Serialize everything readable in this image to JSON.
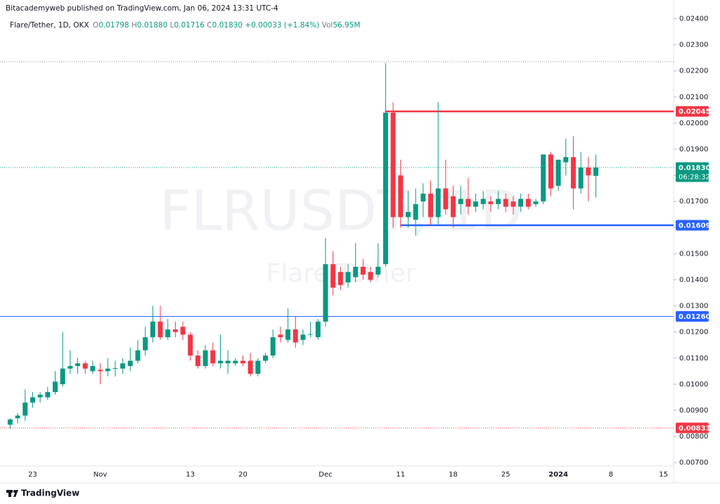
{
  "header": {
    "publisher": "Bitacademyweb published on TradingView.com, Jan 06, 2024 13:31 UTC-4",
    "symbol": "Flare/Tether, 1D, OKX",
    "ohlc": [
      {
        "key": "O",
        "value": "0.01798"
      },
      {
        "key": "H",
        "value": "0.01880"
      },
      {
        "key": "L",
        "value": "0.01716"
      },
      {
        "key": "C",
        "value": "0.01830"
      }
    ],
    "change": "+0.00033 (+1.84%)",
    "vol_key": "Vol",
    "volume": "56.95M"
  },
  "watermark": {
    "ticker": "FLRUSDT, 1D",
    "name": "Flare/Tether"
  },
  "brand": "TradingView",
  "chart_data": {
    "type": "candlestick",
    "categories": [
      null,
      null,
      null,
      "23",
      null,
      null,
      null,
      null,
      null,
      null,
      null,
      null,
      "Nov",
      null,
      null,
      null,
      null,
      null,
      null,
      null,
      null,
      null,
      null,
      null,
      "13",
      null,
      null,
      null,
      null,
      null,
      null,
      "20",
      null,
      null,
      null,
      null,
      null,
      null,
      null,
      null,
      null,
      null,
      "Dec",
      null,
      null,
      null,
      null,
      null,
      null,
      null,
      null,
      null,
      "11",
      null,
      null,
      null,
      null,
      null,
      null,
      "18",
      null,
      null,
      null,
      null,
      null,
      null,
      "25",
      null,
      null,
      null,
      null,
      null,
      null,
      "2024",
      null,
      null,
      null,
      null,
      null,
      null,
      "8",
      null,
      null,
      null,
      null,
      null,
      null,
      "15",
      null
    ],
    "open": [
      0.00845,
      0.0087,
      0.0088,
      0.0093,
      0.0095,
      0.0095,
      0.0097,
      0.01,
      0.0106,
      0.0107,
      0.0108,
      0.0105,
      0.01055,
      0.0105,
      0.0106,
      0.0106,
      0.0107,
      0.0109,
      0.0113,
      0.0118,
      0.0124,
      0.0118,
      0.0121,
      0.0122,
      0.0119,
      0.0111,
      0.0107,
      0.0113,
      0.0108,
      0.0108,
      0.0108,
      0.0109,
      0.0109,
      0.0104,
      0.0109,
      0.0111,
      0.0119,
      0.0117,
      0.0121,
      0.0117,
      0.0119,
      0.0118,
      0.0124,
      0.0146,
      0.0143,
      0.0139,
      0.0141,
      0.0145,
      0.0143,
      0.0142,
      0.0146,
      0.0204,
      0.018,
      0.0164,
      0.0163,
      0.017,
      0.0173,
      0.0164,
      0.0175,
      0.0172,
      0.0169,
      0.0171,
      0.0168,
      0.0169,
      0.017,
      0.0169,
      0.0171,
      0.017,
      0.0168,
      0.0171,
      0.0169,
      0.017,
      0.0188,
      0.0176,
      0.0185,
      0.0187,
      0.0175,
      0.0183,
      0.01798,
      null,
      null,
      null,
      null,
      null,
      null,
      null,
      null,
      null,
      null
    ],
    "high": [
      0.0087,
      0.0089,
      0.0098,
      0.0097,
      0.0097,
      0.0099,
      0.0105,
      0.012,
      0.0113,
      0.011,
      0.0109,
      0.0109,
      0.0108,
      0.011,
      0.0109,
      0.011,
      0.0114,
      0.0117,
      0.0122,
      0.013,
      0.013,
      0.0125,
      0.0124,
      0.0124,
      0.012,
      0.0113,
      0.0115,
      0.0116,
      0.0119,
      0.0113,
      0.011,
      0.0111,
      0.0112,
      0.011,
      0.0112,
      0.0121,
      0.0122,
      0.0129,
      0.0126,
      0.0121,
      0.0124,
      0.0125,
      0.0156,
      0.0151,
      0.0145,
      0.0146,
      0.0154,
      0.0148,
      0.0145,
      0.0154,
      0.0223,
      0.0208,
      0.0186,
      0.0174,
      0.0175,
      0.0177,
      0.0178,
      0.0208,
      0.0186,
      0.0176,
      0.0176,
      0.0179,
      0.0173,
      0.0174,
      0.0172,
      0.0174,
      0.0173,
      0.0172,
      0.0173,
      0.0173,
      0.0171,
      0.0188,
      0.0189,
      0.0186,
      0.0194,
      0.0195,
      0.0189,
      0.0187,
      0.0188,
      null,
      null,
      null,
      null,
      null,
      null,
      null,
      null,
      null,
      null
    ],
    "low": [
      0.0083,
      0.0085,
      0.0086,
      0.0091,
      0.0093,
      0.0094,
      0.0096,
      0.0099,
      0.0104,
      0.0104,
      0.0104,
      0.0104,
      0.01,
      0.0103,
      0.0103,
      0.0104,
      0.0105,
      0.0108,
      0.0111,
      0.0116,
      0.0117,
      0.0117,
      0.0118,
      0.0117,
      0.0109,
      0.0106,
      0.0106,
      0.0107,
      0.0106,
      0.0104,
      0.0107,
      0.0107,
      0.0103,
      0.0103,
      0.0108,
      0.011,
      0.0116,
      0.0116,
      0.0114,
      0.0115,
      0.0118,
      0.0117,
      0.0122,
      0.0134,
      0.0136,
      0.0137,
      0.0139,
      0.014,
      0.0139,
      0.0141,
      0.0145,
      0.016,
      0.016,
      0.016,
      0.0157,
      0.0164,
      0.0161,
      0.0161,
      0.0165,
      0.016,
      0.0165,
      0.0165,
      0.0166,
      0.0167,
      0.0166,
      0.0167,
      0.0166,
      0.0165,
      0.0166,
      0.0167,
      0.0168,
      0.0169,
      0.0172,
      0.0174,
      0.018,
      0.0167,
      0.0173,
      0.017,
      0.01716,
      null,
      null,
      null,
      null,
      null,
      null,
      null,
      null,
      null,
      null
    ],
    "close": [
      0.00865,
      0.0088,
      0.0093,
      0.0095,
      0.0096,
      0.0097,
      0.0101,
      0.0106,
      0.0107,
      0.0108,
      0.0106,
      0.0107,
      0.0105,
      0.0106,
      0.01062,
      0.0108,
      0.0109,
      0.0113,
      0.0118,
      0.0124,
      0.0118,
      0.0121,
      0.012,
      0.0119,
      0.0111,
      0.0107,
      0.0113,
      0.0108,
      0.0109,
      0.0109,
      0.0109,
      0.0108,
      0.0104,
      0.0109,
      0.0111,
      0.0118,
      0.0118,
      0.0121,
      0.0116,
      0.0119,
      0.01192,
      0.0124,
      0.0146,
      0.0137,
      0.0138,
      0.0143,
      0.0145,
      0.0142,
      0.014,
      0.0145,
      0.0204,
      0.0164,
      0.0164,
      0.0166,
      0.0169,
      0.0173,
      0.0164,
      0.0175,
      0.0167,
      0.0164,
      0.0171,
      0.0168,
      0.017,
      0.0171,
      0.0169,
      0.0171,
      0.0168,
      0.0168,
      0.0171,
      0.0168,
      0.017,
      0.0188,
      0.0175,
      0.0186,
      0.0187,
      0.0175,
      0.0183,
      0.018,
      0.0183,
      null,
      null,
      null,
      null,
      null,
      null,
      null,
      null,
      null,
      null
    ],
    "up_color": "#089981",
    "down_color": "#f23645",
    "ylim": [
      0.00687,
      0.0245
    ],
    "yticks": [
      {
        "value": 0.007,
        "label": "0.00700"
      },
      {
        "value": 0.008,
        "label": "0.00800"
      },
      {
        "value": 0.009,
        "label": "0.00900"
      },
      {
        "value": 0.01,
        "label": "0.01000"
      },
      {
        "value": 0.011,
        "label": "0.01100"
      },
      {
        "value": 0.012,
        "label": "0.01200"
      },
      {
        "value": 0.013,
        "label": "0.01300"
      },
      {
        "value": 0.014,
        "label": "0.01400"
      },
      {
        "value": 0.015,
        "label": "0.01500"
      },
      {
        "value": 0.016,
        "label": "0.01600"
      },
      {
        "value": 0.017,
        "label": "0.01700"
      },
      {
        "value": 0.018,
        "label": "0.01800"
      },
      {
        "value": 0.019,
        "label": "0.01900"
      },
      {
        "value": 0.02,
        "label": "0.02000"
      },
      {
        "value": 0.021,
        "label": "0.02100"
      },
      {
        "value": 0.022,
        "label": "0.02200"
      },
      {
        "value": 0.023,
        "label": "0.02300"
      },
      {
        "value": 0.024,
        "label": "0.02400"
      }
    ],
    "grid": false,
    "levels": [
      {
        "value": 0.02235,
        "color": "#9598a1",
        "style": "dotted"
      },
      {
        "value": 0.02045,
        "label": "0.02045",
        "color": "#f23645",
        "style": "thick",
        "start": 50
      },
      {
        "value": 0.0183,
        "label": "0.01830",
        "countdown": "06:28:32",
        "color": "#089981",
        "style": "dotted"
      },
      {
        "value": 0.01609,
        "label": "0.01609",
        "color": "#2962ff",
        "style": "thick",
        "start": 52
      },
      {
        "value": 0.0126,
        "label": "0.01260",
        "color": "#2962ff",
        "style": "solid"
      },
      {
        "value": 0.00833,
        "label": "0.00833",
        "color": "#f23645",
        "style": "dotted"
      }
    ]
  }
}
